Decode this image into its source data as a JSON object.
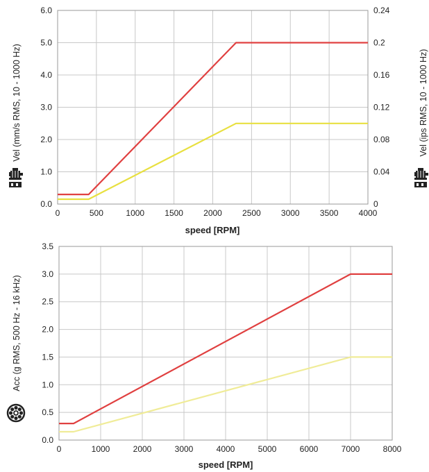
{
  "chart_data": [
    {
      "type": "line",
      "xlabel": "speed [RPM]",
      "ylabel": "Vel (mm/s RMS, 10 - 1000 Hz)",
      "ylabel_right": "Vel (ips RMS, 10 - 1000 Hz)",
      "xlim": [
        0,
        4000
      ],
      "ylim": [
        0,
        6
      ],
      "ylim_right": [
        0,
        0.24
      ],
      "x_ticks": [
        "0",
        "500",
        "1000",
        "1500",
        "2000",
        "2500",
        "3000",
        "3500",
        "4000"
      ],
      "y_ticks": [
        "0.0",
        "1.0",
        "2.0",
        "3.0",
        "4.0",
        "5.0",
        "6.0"
      ],
      "y_ticks_right": [
        "0",
        "0.04",
        "0.08",
        "0.12",
        "0.16",
        "0.2",
        "0.24"
      ],
      "grid": true,
      "icon": "motor-icon",
      "series": [
        {
          "color": "#e04040",
          "x": [
            0,
            400,
            2300,
            4000
          ],
          "y": [
            0.3,
            0.3,
            5.0,
            5.0
          ]
        },
        {
          "color": "#e8e040",
          "x": [
            0,
            400,
            2300,
            4000
          ],
          "y": [
            0.15,
            0.15,
            2.5,
            2.5
          ]
        }
      ]
    },
    {
      "type": "line",
      "xlabel": "speed [RPM]",
      "ylabel": "Acc (g RMS, 500 Hz - 16 kHz)",
      "xlim": [
        0,
        8000
      ],
      "ylim": [
        0,
        3.5
      ],
      "x_ticks": [
        "0",
        "1000",
        "2000",
        "3000",
        "4000",
        "5000",
        "6000",
        "7000",
        "8000"
      ],
      "y_ticks": [
        "0.0",
        "0.5",
        "1.0",
        "1.5",
        "2.0",
        "2.5",
        "3.0",
        "3.5"
      ],
      "grid": true,
      "icon": "bearing-icon",
      "series": [
        {
          "color": "#e04040",
          "x": [
            0,
            350,
            7000,
            8000
          ],
          "y": [
            0.3,
            0.3,
            3.0,
            3.0
          ]
        },
        {
          "color": "#f0ec98",
          "x": [
            0,
            350,
            7000,
            8000
          ],
          "y": [
            0.15,
            0.15,
            1.5,
            1.5
          ]
        }
      ]
    }
  ]
}
